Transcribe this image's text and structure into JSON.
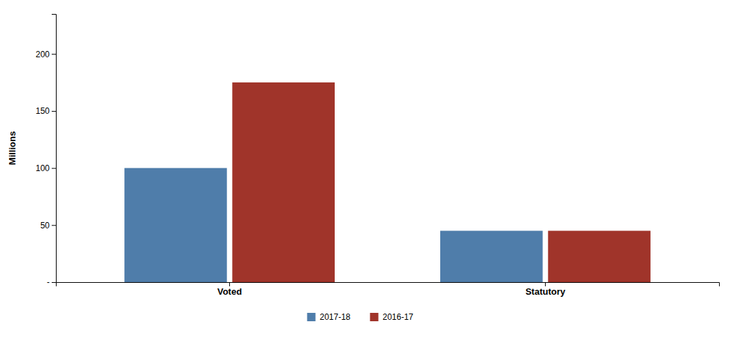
{
  "chart_data": {
    "type": "bar",
    "categories": [
      "Voted",
      "Statutory"
    ],
    "series": [
      {
        "name": "2017-18",
        "color": "#4F7DAA",
        "values": [
          100,
          45
        ]
      },
      {
        "name": "2016-17",
        "color": "#A0342A",
        "values": [
          175,
          45
        ]
      }
    ],
    "y_label": "Millions",
    "ylim": [
      0,
      235
    ],
    "yticks": [
      {
        "value": 0,
        "label": "-"
      },
      50,
      100,
      150,
      200
    ],
    "grid": false,
    "legend": "bottom"
  }
}
